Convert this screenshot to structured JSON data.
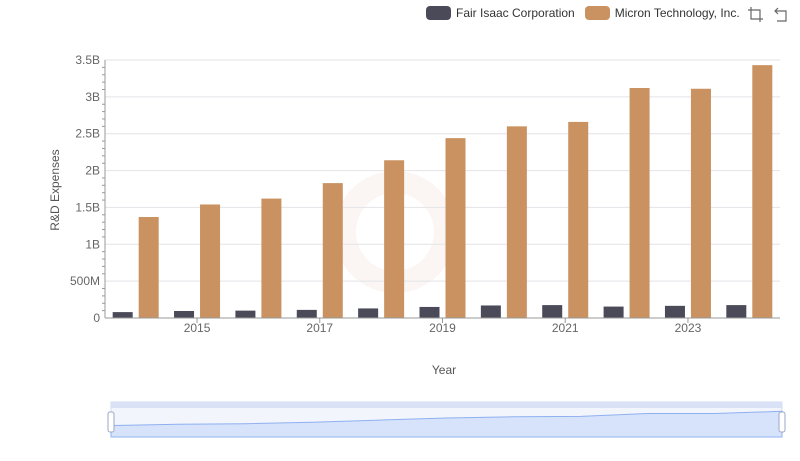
{
  "colors": {
    "fico": "#4a4a58",
    "micron": "#c99260",
    "grid": "#e3e3e8",
    "axis": "#666666",
    "slider_fill": "#d6e3fb",
    "slider_line": "#8fb0f0"
  },
  "legend": [
    {
      "label": "Fair Isaac Corporation",
      "color": "#4a4a58"
    },
    {
      "label": "Micron Technology, Inc.",
      "color": "#c99260"
    }
  ],
  "toolbar": {
    "icons": [
      "zoom-icon",
      "restore-icon"
    ]
  },
  "chart_data": {
    "type": "bar",
    "xlabel": "Year",
    "ylabel": "R&D Expenses",
    "ylim": [
      0,
      3500000000
    ],
    "yticks": [
      {
        "v": 0,
        "label": "0"
      },
      {
        "v": 500000000,
        "label": "500M"
      },
      {
        "v": 1000000000,
        "label": "1B"
      },
      {
        "v": 1500000000,
        "label": "1.5B"
      },
      {
        "v": 2000000000,
        "label": "2B"
      },
      {
        "v": 2500000000,
        "label": "2.5B"
      },
      {
        "v": 3000000000,
        "label": "3B"
      },
      {
        "v": 3500000000,
        "label": "3.5B"
      }
    ],
    "categories": [
      "2014",
      "2015",
      "2016",
      "2017",
      "2018",
      "2019",
      "2020",
      "2021",
      "2022",
      "2023",
      "2024"
    ],
    "xtick_labels": [
      "2015",
      "2017",
      "2019",
      "2021",
      "2023"
    ],
    "grid": true,
    "legend_position": "top-right",
    "series": [
      {
        "name": "Fair Isaac Corporation",
        "values": [
          80000000,
          95000000,
          100000000,
          110000000,
          130000000,
          150000000,
          170000000,
          175000000,
          155000000,
          165000000,
          175000000
        ]
      },
      {
        "name": "Micron Technology, Inc.",
        "values": [
          1370000000,
          1540000000,
          1620000000,
          1830000000,
          2140000000,
          2440000000,
          2600000000,
          2660000000,
          3120000000,
          3110000000,
          3430000000
        ]
      }
    ]
  }
}
